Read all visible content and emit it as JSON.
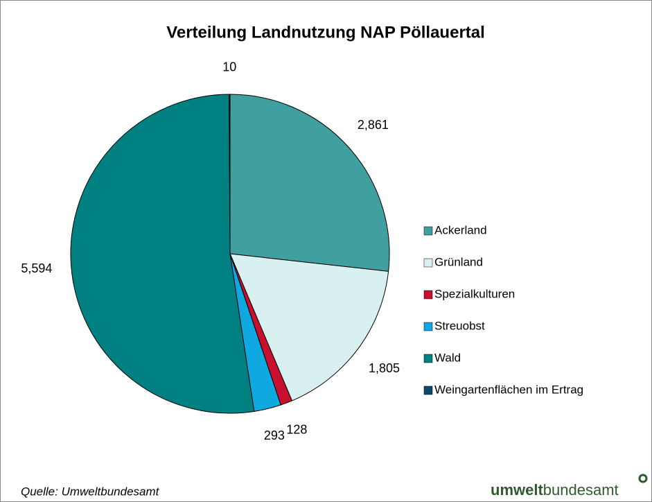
{
  "chart_data": {
    "type": "pie",
    "title": "Verteilung Landnutzung NAP Pöllauertal",
    "categories": [
      "Ackerland",
      "Grünland",
      "Spezialkulturen",
      "Streuobst",
      "Wald",
      "Weingartenflächen im Ertrag"
    ],
    "values": [
      2861,
      1805,
      128,
      293,
      5594,
      10
    ],
    "value_labels": [
      "2,861",
      "1,805",
      "128",
      "293",
      "5,594",
      "10"
    ],
    "colors": [
      "#40a0a0",
      "#d9f0f0",
      "#c8102e",
      "#10a8e0",
      "#008080",
      "#0a4a6a"
    ],
    "legend": "right"
  },
  "footer": {
    "source": "Quelle: Umweltbundesamt",
    "logo_bold": "umwelt",
    "logo_regular": "bundesamt"
  }
}
